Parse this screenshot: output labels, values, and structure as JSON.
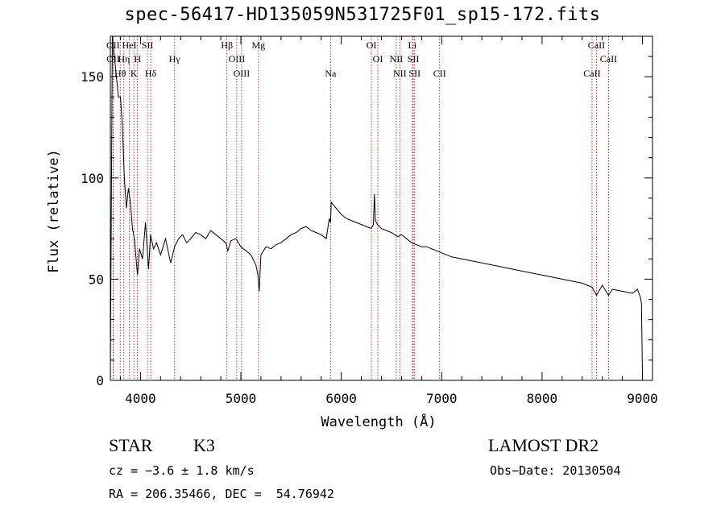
{
  "title": "spec-56417-HD135059N531725F01_sp15-172.fits",
  "info": {
    "class": "STAR",
    "subclass": "K3",
    "survey": "LAMOST DR2",
    "cz": "cz = −3.6 ± 1.8 km/s",
    "obs_date": "Obs−Date: 20130504",
    "radec": "RA = 206.35466, DEC =  54.76942"
  },
  "chart_data": {
    "type": "line",
    "title": "spec-56417-HD135059N531725F01_sp15-172.fits",
    "xlabel": "Wavelength (Å)",
    "ylabel": "Flux (relative)",
    "xlim": [
      3700,
      9100
    ],
    "ylim": [
      0,
      170
    ],
    "xticks": [
      4000,
      5000,
      6000,
      7000,
      8000,
      9000
    ],
    "yticks": [
      0,
      50,
      100,
      150
    ],
    "grid": false,
    "series": [
      {
        "x": [
          3700,
          3720,
          3740,
          3760,
          3780,
          3800,
          3820,
          3840,
          3860,
          3880,
          3900,
          3920,
          3940,
          3960,
          3970,
          3990,
          4020,
          4050,
          4080,
          4100,
          4130,
          4160,
          4200,
          4250,
          4300,
          4340,
          4380,
          4420,
          4460,
          4500,
          4550,
          4600,
          4650,
          4700,
          4750,
          4800,
          4850,
          4870,
          4900,
          4950,
          5000,
          5050,
          5100,
          5150,
          5170,
          5183,
          5200,
          5250,
          5300,
          5350,
          5400,
          5450,
          5500,
          5550,
          5600,
          5650,
          5700,
          5750,
          5800,
          5850,
          5880,
          5893,
          5900,
          5950,
          6000,
          6050,
          6100,
          6150,
          6200,
          6250,
          6300,
          6320,
          6330,
          6340,
          6360,
          6400,
          6450,
          6500,
          6563,
          6600,
          6650,
          6700,
          6750,
          6800,
          6850,
          6900,
          6950,
          7000,
          7100,
          7200,
          7300,
          7400,
          7500,
          7600,
          7700,
          7800,
          7900,
          8000,
          8100,
          8200,
          8300,
          8400,
          8500,
          8542,
          8600,
          8662,
          8700,
          8800,
          8900,
          8950,
          8980,
          8990,
          9000
        ],
        "y": [
          5,
          172,
          160,
          150,
          140,
          140,
          125,
          100,
          85,
          95,
          88,
          75,
          70,
          58,
          52,
          65,
          60,
          78,
          55,
          72,
          65,
          68,
          62,
          70,
          58,
          66,
          70,
          72,
          68,
          70,
          73,
          72,
          70,
          74,
          72,
          70,
          68,
          64,
          69,
          70,
          66,
          64,
          62,
          57,
          52,
          44,
          62,
          66,
          65,
          67,
          68,
          70,
          72,
          73,
          75,
          76,
          74,
          73,
          72,
          70,
          80,
          78,
          88,
          85,
          82,
          80,
          79,
          78,
          77,
          76,
          75,
          77,
          92,
          79,
          77,
          75,
          74,
          73,
          71,
          72,
          70,
          68,
          67,
          66,
          66,
          65,
          64,
          63,
          61,
          60,
          59,
          58,
          57,
          56,
          55,
          54,
          53,
          52,
          51,
          50,
          49,
          48,
          46,
          42,
          47,
          42,
          45,
          44,
          43,
          45,
          41,
          38,
          3
        ]
      }
    ],
    "lines_top": [
      {
        "name": "OII",
        "wl": 3727,
        "row": 0
      },
      {
        "name": "HeI",
        "wl": 3889,
        "row": 0
      },
      {
        "name": "SII",
        "wl": 4070,
        "row": 0
      },
      {
        "name": "Hβ",
        "wl": 4861,
        "row": 0
      },
      {
        "name": "Mg",
        "wl": 5175,
        "row": 0
      },
      {
        "name": "OI",
        "wl": 6300,
        "row": 0
      },
      {
        "name": "Li",
        "wl": 6708,
        "row": 0
      },
      {
        "name": "CaII",
        "wl": 8542,
        "row": 0
      },
      {
        "name": "OII",
        "wl": 3729,
        "row": 1
      },
      {
        "name": "Hη",
        "wl": 3835,
        "row": 1
      },
      {
        "name": "H",
        "wl": 3970,
        "row": 1
      },
      {
        "name": "Hγ",
        "wl": 4340,
        "row": 1
      },
      {
        "name": "OIII",
        "wl": 4959,
        "row": 1
      },
      {
        "name": "OI",
        "wl": 6364,
        "row": 1
      },
      {
        "name": "NII",
        "wl": 6548,
        "row": 1
      },
      {
        "name": "SII",
        "wl": 6717,
        "row": 1
      },
      {
        "name": "CaII",
        "wl": 8662,
        "row": 1
      },
      {
        "name": "Hθ",
        "wl": 3798,
        "row": 2
      },
      {
        "name": "K",
        "wl": 3934,
        "row": 2
      },
      {
        "name": "Hδ",
        "wl": 4102,
        "row": 2
      },
      {
        "name": "OIII",
        "wl": 5007,
        "row": 2
      },
      {
        "name": "Na",
        "wl": 5893,
        "row": 2
      },
      {
        "name": "NII",
        "wl": 6583,
        "row": 2
      },
      {
        "name": "SII",
        "wl": 6731,
        "row": 2
      },
      {
        "name": "CII",
        "wl": 6980,
        "row": 2
      },
      {
        "name": "CaII",
        "wl": 8498,
        "row": 2
      }
    ]
  }
}
